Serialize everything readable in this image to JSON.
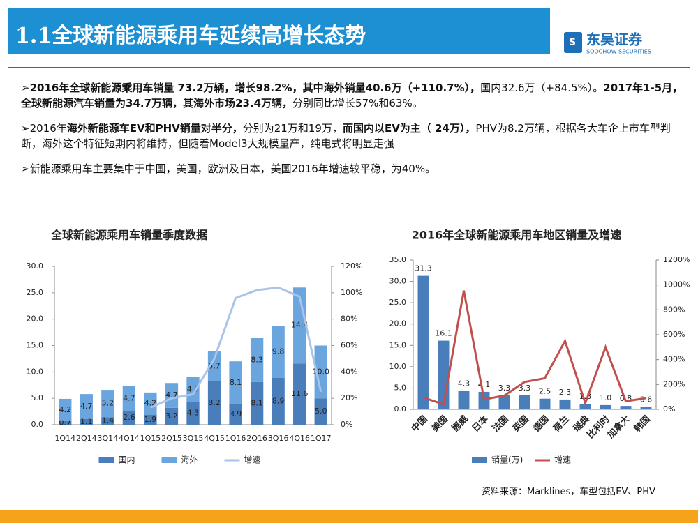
{
  "header": {
    "title": "1.1全球新能源乘用车延续高增长态势",
    "logo_cn": "东吴证券",
    "logo_en": "SOOCHOW SECURITIES"
  },
  "bullets": [
    [
      {
        "text": "➢2016年全球新能源乘用车销量 73.2万辆，增长98.2%，其中海外销量40.6万（+110.7%），",
        "bold": true
      },
      {
        "text": "国内32.6万（+84.5%）。",
        "bold": false
      },
      {
        "text": "2017年1-5月，全球新能源汽车销量为34.7万辆，其海外市场23.4万辆，",
        "bold": true
      },
      {
        "text": "分别同比增长57%和63%。",
        "bold": false
      }
    ],
    [
      {
        "text": "➢2016年",
        "bold": false
      },
      {
        "text": "海外新能源车EV和PHV销量对半分，",
        "bold": true
      },
      {
        "text": "分别为21万和19万，",
        "bold": false
      },
      {
        "text": "而国内以EV为主（ 24万），",
        "bold": true
      },
      {
        "text": "PHV为8.2万辆，根据各大车企上市车型判断，海外这个特征短期内将维持，但随着Model3大规模量产，纯电式将明显走强",
        "bold": false
      }
    ],
    [
      {
        "text": "➢新能源乘用车主要集中于中国，美国，欧洲及日本，美国2016年增速较平稳，为40%。",
        "bold": false
      }
    ]
  ],
  "source": "资料来源：Marklines，车型包括EV、PHV",
  "chart_data": [
    {
      "type": "bar",
      "stacked": true,
      "title": "全球新能源乘用车销量季度数据",
      "categories": [
        "1Q14",
        "2Q14",
        "3Q14",
        "4Q14",
        "1Q15",
        "2Q15",
        "3Q15",
        "4Q15",
        "1Q16",
        "2Q16",
        "3Q16",
        "4Q16",
        "1Q17"
      ],
      "series": [
        {
          "name": "国内",
          "type": "bar",
          "color": "#4a7ebb",
          "values": [
            0.7,
            1.1,
            1.4,
            2.6,
            1.9,
            3.2,
            4.3,
            8.2,
            3.9,
            8.1,
            8.9,
            11.6,
            5.0
          ],
          "value_labels": [
            "0.7",
            "1.1",
            "1.4",
            "2.6",
            "1.9",
            "3.2",
            "4.3",
            "8.2",
            "3.9",
            "8.1",
            "8.9",
            "11.6",
            "5.0"
          ]
        },
        {
          "name": "海外",
          "type": "bar",
          "color": "#6ba5de",
          "values": [
            4.2,
            4.7,
            5.2,
            4.7,
            4.2,
            4.7,
            4.7,
            5.7,
            8.1,
            8.3,
            9.8,
            14.4,
            10.0
          ],
          "value_labels": [
            "4.2",
            "4.7",
            "5.2",
            "4.7",
            "4.2",
            "4.7",
            "4.7",
            "5.7",
            "8.1",
            "8.3",
            "9.8",
            "14.4",
            "10.0"
          ]
        },
        {
          "name": "增速",
          "type": "line",
          "axis": "y2",
          "color": "#a9c4e8",
          "values": [
            null,
            null,
            null,
            null,
            13,
            20,
            23,
            50,
            96,
            102,
            104,
            97,
            25
          ]
        }
      ],
      "ylim": [
        0,
        30
      ],
      "yticks": [
        {
          "value": 0,
          "label": "0.0"
        },
        {
          "value": 5,
          "label": "5.0"
        },
        {
          "value": 10,
          "label": "10.0"
        },
        {
          "value": 15,
          "label": "15.0"
        },
        {
          "value": 20,
          "label": "20.0"
        },
        {
          "value": 25,
          "label": "25.0"
        },
        {
          "value": 30,
          "label": "30.0"
        }
      ],
      "y2lim": [
        0,
        120
      ],
      "y2ticks": [
        {
          "value": 0,
          "label": "0%"
        },
        {
          "value": 20,
          "label": "20%"
        },
        {
          "value": 40,
          "label": "40%"
        },
        {
          "value": 60,
          "label": "60%"
        },
        {
          "value": 80,
          "label": "80%"
        },
        {
          "value": 100,
          "label": "100%"
        },
        {
          "value": 120,
          "label": "120%"
        }
      ],
      "grid": false
    },
    {
      "type": "bar",
      "stacked": false,
      "title": "2016年全球新能源乘用车地区销量及增速",
      "categories": [
        "中国",
        "美国",
        "挪威",
        "日本",
        "法国",
        "英国",
        "德国",
        "荷兰",
        "瑞典",
        "比利时",
        "加拿大",
        "韩国"
      ],
      "series": [
        {
          "name": "销量(万)",
          "type": "bar",
          "color": "#4a7ebb",
          "values": [
            31.3,
            16.1,
            4.3,
            4.1,
            3.3,
            3.3,
            2.5,
            2.3,
            1.3,
            1.0,
            0.8,
            0.6
          ],
          "value_labels": [
            "31.3",
            "16.1",
            "4.3",
            "4.1",
            "3.3",
            "3.3",
            "2.5",
            "2.3",
            "1.3",
            "1.0",
            "0.8",
            "0.6"
          ]
        },
        {
          "name": "增速",
          "type": "line",
          "axis": "y2",
          "color": "#c0504d",
          "values": [
            95,
            40,
            955,
            80,
            110,
            220,
            250,
            550,
            50,
            500,
            65,
            90
          ]
        }
      ],
      "ylim": [
        0,
        35
      ],
      "yticks": [
        {
          "value": 0,
          "label": "0.0"
        },
        {
          "value": 5,
          "label": "5.0"
        },
        {
          "value": 10,
          "label": "10.0"
        },
        {
          "value": 15,
          "label": "15.0"
        },
        {
          "value": 20,
          "label": "20.0"
        },
        {
          "value": 25,
          "label": "25.0"
        },
        {
          "value": 30,
          "label": "30.0"
        },
        {
          "value": 35,
          "label": "35.0"
        }
      ],
      "y2lim": [
        0,
        1200
      ],
      "y2ticks": [
        {
          "value": 0,
          "label": "0%"
        },
        {
          "value": 200,
          "label": "200%"
        },
        {
          "value": 400,
          "label": "400%"
        },
        {
          "value": 600,
          "label": "600%"
        },
        {
          "value": 800,
          "label": "800%"
        },
        {
          "value": 1000,
          "label": "1000%"
        },
        {
          "value": 1200,
          "label": "1200%"
        }
      ],
      "grid": false
    }
  ]
}
